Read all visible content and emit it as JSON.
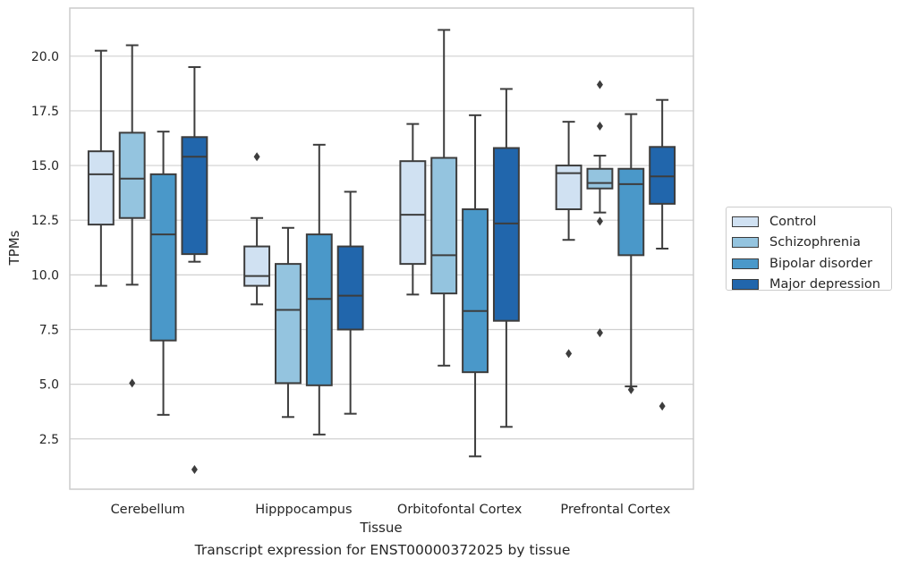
{
  "caption": "Transcript expression for ENST00000372025 by tissue",
  "chart_data": {
    "type": "box",
    "xlabel": "Tissue",
    "ylabel": "TPMs",
    "ylim": [
      0.2,
      22.2
    ],
    "yticks": [
      2.5,
      5.0,
      7.5,
      10.0,
      12.5,
      15.0,
      17.5,
      20.0
    ],
    "ytick_labels": [
      "2.5",
      "5.0",
      "7.5",
      "10.0",
      "12.5",
      "15.0",
      "17.5",
      "20.0"
    ],
    "grid": "horizontal",
    "legend_position": "right",
    "categories": [
      "Cerebellum",
      "Hipppocampus",
      "Orbitofontal Cortex",
      "Prefrontal Cortex"
    ],
    "series": [
      {
        "name": "Control",
        "color": "#d0e1f2",
        "boxes": [
          {
            "whislo": 9.5,
            "q1": 12.3,
            "med": 14.6,
            "q3": 15.65,
            "whishi": 20.25,
            "fliers": []
          },
          {
            "whislo": 8.65,
            "q1": 9.5,
            "med": 9.95,
            "q3": 11.3,
            "whishi": 12.6,
            "fliers": [
              15.4
            ]
          },
          {
            "whislo": 9.1,
            "q1": 10.5,
            "med": 12.75,
            "q3": 15.2,
            "whishi": 16.9,
            "fliers": []
          },
          {
            "whislo": 11.6,
            "q1": 13.0,
            "med": 14.65,
            "q3": 15.0,
            "whishi": 17.0,
            "fliers": [
              6.4
            ]
          }
        ]
      },
      {
        "name": "Schizophrenia",
        "color": "#94c4df",
        "boxes": [
          {
            "whislo": 9.55,
            "q1": 12.6,
            "med": 14.4,
            "q3": 16.5,
            "whishi": 20.5,
            "fliers": [
              5.05
            ]
          },
          {
            "whislo": 3.5,
            "q1": 5.05,
            "med": 8.4,
            "q3": 10.5,
            "whishi": 12.15,
            "fliers": []
          },
          {
            "whislo": 5.85,
            "q1": 9.15,
            "med": 10.9,
            "q3": 15.35,
            "whishi": 21.2,
            "fliers": []
          },
          {
            "whislo": 12.85,
            "q1": 13.95,
            "med": 14.2,
            "q3": 14.85,
            "whishi": 15.45,
            "fliers": [
              18.7,
              16.8,
              12.45,
              7.35
            ]
          }
        ]
      },
      {
        "name": "Bipolar disorder",
        "color": "#4a98c9",
        "boxes": [
          {
            "whislo": 3.6,
            "q1": 7.0,
            "med": 11.85,
            "q3": 14.6,
            "whishi": 16.55,
            "fliers": []
          },
          {
            "whislo": 2.7,
            "q1": 4.95,
            "med": 8.9,
            "q3": 11.85,
            "whishi": 15.95,
            "fliers": []
          },
          {
            "whislo": 1.7,
            "q1": 5.55,
            "med": 8.35,
            "q3": 13.0,
            "whishi": 17.3,
            "fliers": []
          },
          {
            "whislo": 4.9,
            "q1": 10.9,
            "med": 14.15,
            "q3": 14.85,
            "whishi": 17.35,
            "fliers": [
              4.75
            ]
          }
        ]
      },
      {
        "name": "Major depression",
        "color": "#2166ac",
        "boxes": [
          {
            "whislo": 10.6,
            "q1": 10.95,
            "med": 15.4,
            "q3": 16.3,
            "whishi": 19.5,
            "fliers": [
              1.1
            ]
          },
          {
            "whislo": 3.65,
            "q1": 7.5,
            "med": 9.05,
            "q3": 11.3,
            "whishi": 13.8,
            "fliers": []
          },
          {
            "whislo": 3.05,
            "q1": 7.9,
            "med": 12.35,
            "q3": 15.8,
            "whishi": 18.5,
            "fliers": []
          },
          {
            "whislo": 11.2,
            "q1": 13.25,
            "med": 14.5,
            "q3": 15.85,
            "whishi": 18.0,
            "fliers": [
              4.0
            ]
          }
        ]
      }
    ]
  }
}
